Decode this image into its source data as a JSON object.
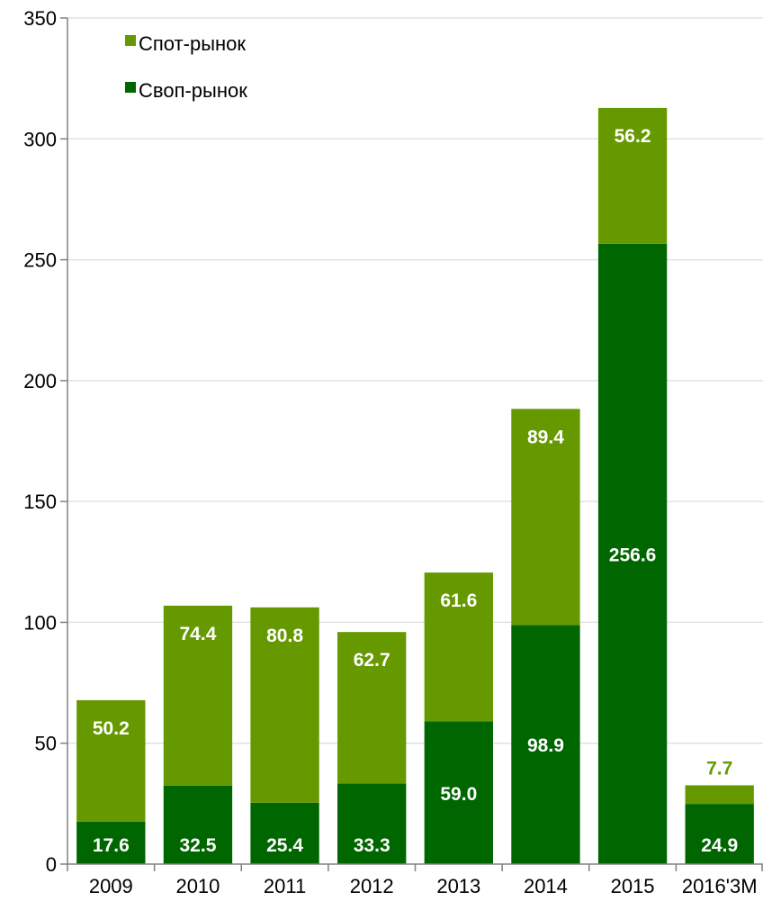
{
  "chart_data": {
    "type": "bar",
    "stacked": true,
    "categories": [
      "2009",
      "2010",
      "2011",
      "2012",
      "2013",
      "2014",
      "2015",
      "2016'3M"
    ],
    "series": [
      {
        "name": "Своп-рынок",
        "color": "#006600",
        "values": [
          17.6,
          32.5,
          25.4,
          33.3,
          59.0,
          98.9,
          256.6,
          24.9
        ],
        "labels": [
          "17.6",
          "32.5",
          "25.4",
          "33.3",
          "59.0",
          "98.9",
          "256.6",
          "24.9"
        ]
      },
      {
        "name": "Спот-рынок",
        "color": "#669900",
        "values": [
          50.2,
          74.4,
          80.8,
          62.7,
          61.6,
          89.4,
          56.2,
          7.7
        ],
        "labels": [
          "50.2",
          "74.4",
          "80.8",
          "62.7",
          "61.6",
          "89.4",
          "56.2",
          "7.7"
        ]
      }
    ],
    "yticks": [
      "0",
      "50",
      "100",
      "150",
      "200",
      "250",
      "300",
      "350"
    ],
    "ylim": [
      0,
      350
    ],
    "grid": "horizontal",
    "legend": {
      "position": "top-left",
      "order": [
        "Спот-рынок",
        "Своп-рынок"
      ]
    },
    "label_color": "#ffffff",
    "outside_label_color": "#669900"
  }
}
